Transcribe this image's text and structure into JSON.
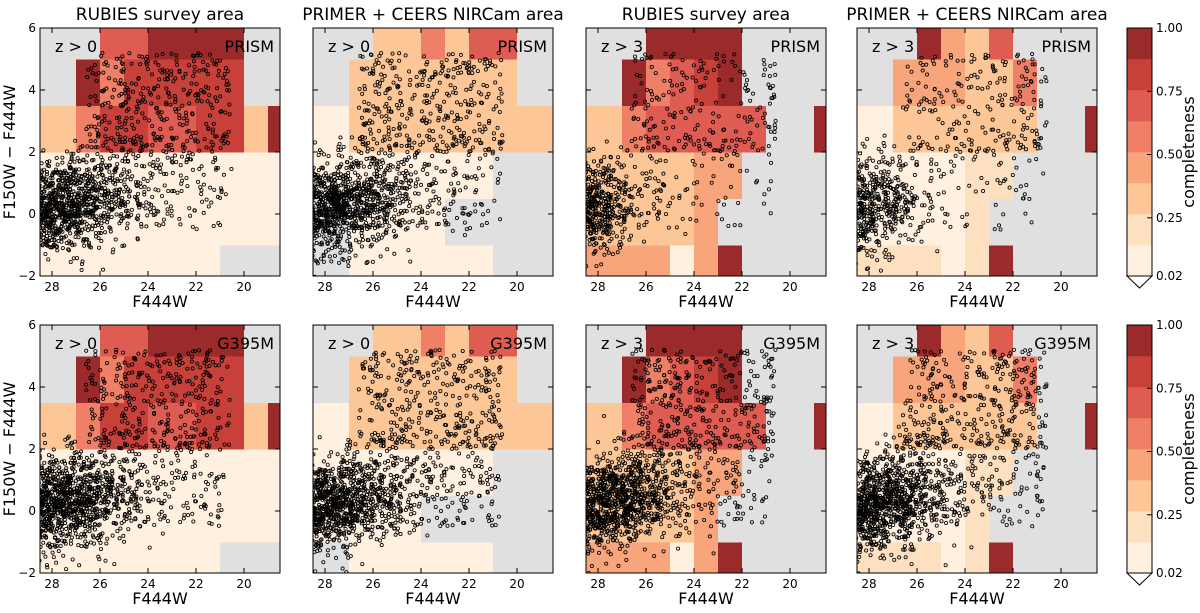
{
  "colorbar": {
    "label": "completeness",
    "ticks": [
      "0.02",
      "0.25",
      "0.50",
      "0.75",
      "1.00"
    ],
    "levels": [
      0.02,
      0.125,
      0.25,
      0.375,
      0.5,
      0.625,
      0.75,
      0.875,
      1.0
    ],
    "colors": [
      "#fff0e0",
      "#fde0c0",
      "#fdc697",
      "#f8a57c",
      "#ef8067",
      "#de5c52",
      "#c8403a",
      "#9b2a2a"
    ],
    "nodata_color": "#e0e0e0"
  },
  "chart_data": [
    {
      "type": "heatmap",
      "title": "RUBIES survey area",
      "redshift_label": "z > 0",
      "grating_label": "PRISM",
      "xlabel": "F444W",
      "ylabel": "F150W − F444W",
      "xlim": [
        28.5,
        18.5
      ],
      "ylim": [
        -2,
        6
      ],
      "xticks": [
        "28",
        "26",
        "24",
        "22",
        "20"
      ],
      "yticks": [
        "−2",
        "0",
        "2",
        "4",
        "6"
      ],
      "x_bin_edges": [
        28.5,
        27,
        26,
        25,
        24,
        23,
        22,
        21,
        20,
        19,
        18.5
      ],
      "y_bin_edges": [
        -2,
        -1,
        0.5,
        2,
        3.5,
        5,
        6
      ],
      "completeness": [
        [
          0.05,
          0.05,
          0.05,
          0.05,
          0.05,
          0.05,
          0.05,
          null,
          null,
          null
        ],
        [
          0.05,
          0.05,
          0.05,
          0.05,
          0.05,
          0.05,
          0.05,
          0.05,
          0.05,
          0.05
        ],
        [
          0.05,
          0.05,
          0.05,
          0.05,
          0.05,
          0.05,
          0.05,
          0.05,
          0.05,
          0.05
        ],
        [
          0.25,
          0.6,
          0.75,
          0.75,
          0.7,
          0.7,
          0.75,
          0.75,
          0.25,
          0.95
        ],
        [
          null,
          0.9,
          0.6,
          0.75,
          0.75,
          0.8,
          0.8,
          0.8,
          null,
          null
        ],
        [
          null,
          null,
          0.7,
          0.7,
          0.95,
          0.95,
          0.95,
          0.95,
          null,
          null
        ]
      ],
      "sample_density": "dense"
    },
    {
      "type": "heatmap",
      "title": "PRIMER + CEERS NIRCam area",
      "redshift_label": "z > 0",
      "grating_label": "PRISM",
      "xlabel": "F444W",
      "ylabel": "",
      "xlim": [
        28.5,
        18.5
      ],
      "ylim": [
        -2,
        6
      ],
      "xticks": [
        "28",
        "26",
        "24",
        "22",
        "20"
      ],
      "yticks": [
        "−2",
        "0",
        "2",
        "4",
        "6"
      ],
      "x_bin_edges": [
        28.5,
        27,
        26,
        25,
        24,
        23,
        22,
        21,
        20,
        19,
        18.5
      ],
      "y_bin_edges": [
        -2,
        -1,
        0.5,
        2,
        3.5,
        5,
        6
      ],
      "completeness": [
        [
          null,
          0.1,
          0.1,
          0.1,
          0.05,
          0.1,
          0.1,
          null,
          null,
          null
        ],
        [
          null,
          0.1,
          0.1,
          0.1,
          0.05,
          null,
          null,
          null,
          null,
          null
        ],
        [
          0.1,
          0.1,
          0.1,
          0.1,
          0.05,
          0.05,
          0.1,
          null,
          null,
          null
        ],
        [
          0.1,
          0.25,
          0.3,
          0.3,
          0.3,
          0.3,
          0.3,
          0.25,
          0.25,
          0.35
        ],
        [
          null,
          0.25,
          0.25,
          0.35,
          0.3,
          0.3,
          0.35,
          0.35,
          null,
          null
        ],
        [
          null,
          null,
          0.3,
          0.3,
          0.5,
          0.25,
          0.7,
          0.7,
          null,
          null
        ]
      ],
      "sample_density": "dense"
    },
    {
      "type": "heatmap",
      "title": "RUBIES survey area",
      "redshift_label": "z > 3",
      "grating_label": "PRISM",
      "xlabel": "F444W",
      "ylabel": "",
      "xlim": [
        28.5,
        18.5
      ],
      "ylim": [
        -2,
        6
      ],
      "xticks": [
        "28",
        "26",
        "24",
        "22",
        "20"
      ],
      "yticks": [
        "−2",
        "0",
        "2",
        "4",
        "6"
      ],
      "x_bin_edges": [
        28.5,
        27,
        26,
        25,
        24,
        23,
        22,
        21,
        20,
        19,
        18.5
      ],
      "y_bin_edges": [
        -2,
        -1,
        0.5,
        2,
        3.5,
        5,
        6
      ],
      "completeness": [
        [
          0.4,
          0.4,
          0.4,
          0.1,
          0.4,
          0.95,
          null,
          null,
          null,
          null
        ],
        [
          0.25,
          0.25,
          0.25,
          0.25,
          0.4,
          null,
          null,
          null,
          null,
          null
        ],
        [
          0.25,
          0.25,
          0.25,
          0.25,
          0.4,
          0.4,
          null,
          null,
          null,
          null
        ],
        [
          0.25,
          0.6,
          0.7,
          0.7,
          0.7,
          0.7,
          0.7,
          null,
          null,
          0.95
        ],
        [
          null,
          0.95,
          0.55,
          0.7,
          0.85,
          0.95,
          null,
          null,
          null,
          null
        ],
        [
          null,
          null,
          0.95,
          0.95,
          0.95,
          0.95,
          null,
          null,
          null,
          null
        ]
      ],
      "sample_density": "medium"
    },
    {
      "type": "heatmap",
      "title": "PRIMER + CEERS NIRCam area",
      "redshift_label": "z > 3",
      "grating_label": "PRISM",
      "xlabel": "F444W",
      "ylabel": "",
      "xlim": [
        28.5,
        18.5
      ],
      "ylim": [
        -2,
        6
      ],
      "xticks": [
        "28",
        "26",
        "24",
        "22",
        "20"
      ],
      "yticks": [
        "−2",
        "0",
        "2",
        "4",
        "6"
      ],
      "x_bin_edges": [
        28.5,
        27,
        26,
        25,
        24,
        23,
        22,
        21,
        20,
        19,
        18.5
      ],
      "y_bin_edges": [
        -2,
        -1,
        0.5,
        2,
        3.5,
        5,
        6
      ],
      "completeness": [
        [
          0.2,
          0.2,
          0.2,
          0.1,
          0.2,
          0.95,
          null,
          null,
          null,
          null
        ],
        [
          0.05,
          0.05,
          0.05,
          0.05,
          0.15,
          null,
          null,
          null,
          null,
          null
        ],
        [
          0.1,
          0.1,
          0.1,
          0.1,
          0.15,
          0.2,
          null,
          null,
          null,
          null
        ],
        [
          0.1,
          0.25,
          0.3,
          0.3,
          0.3,
          0.3,
          0.25,
          null,
          null,
          0.95
        ],
        [
          null,
          0.4,
          0.4,
          0.4,
          0.35,
          0.35,
          0.55,
          null,
          null,
          null
        ],
        [
          null,
          null,
          0.95,
          0.4,
          0.3,
          0.65,
          null,
          null,
          null,
          null
        ]
      ],
      "sample_density": "medium"
    },
    {
      "type": "heatmap",
      "title": "",
      "redshift_label": "z > 0",
      "grating_label": "G395M",
      "xlabel": "F444W",
      "ylabel": "F150W − F444W",
      "xlim": [
        28.5,
        18.5
      ],
      "ylim": [
        -2,
        6
      ],
      "xticks": [
        "28",
        "26",
        "24",
        "22",
        "20"
      ],
      "yticks": [
        "−2",
        "0",
        "2",
        "4",
        "6"
      ],
      "x_bin_edges": [
        28.5,
        27,
        26,
        25,
        24,
        23,
        22,
        21,
        20,
        19,
        18.5
      ],
      "y_bin_edges": [
        -2,
        -1,
        0.5,
        2,
        3.5,
        5,
        6
      ],
      "completeness": [
        [
          0.05,
          0.05,
          0.05,
          0.05,
          0.05,
          0.05,
          0.05,
          null,
          null,
          null
        ],
        [
          0.05,
          0.05,
          0.05,
          0.05,
          0.05,
          0.05,
          0.05,
          0.05,
          0.05,
          0.05
        ],
        [
          0.05,
          0.05,
          0.05,
          0.05,
          0.05,
          0.05,
          0.05,
          0.05,
          0.05,
          0.05
        ],
        [
          0.25,
          0.6,
          0.75,
          0.75,
          0.7,
          0.7,
          0.75,
          0.75,
          0.25,
          0.95
        ],
        [
          null,
          0.9,
          0.6,
          0.75,
          0.75,
          0.8,
          0.8,
          0.8,
          null,
          null
        ],
        [
          null,
          null,
          0.7,
          0.7,
          0.95,
          0.95,
          0.95,
          0.95,
          null,
          null
        ]
      ],
      "sample_density": "dense"
    },
    {
      "type": "heatmap",
      "title": "",
      "redshift_label": "z > 0",
      "grating_label": "G395M",
      "xlabel": "F444W",
      "ylabel": "",
      "xlim": [
        28.5,
        18.5
      ],
      "ylim": [
        -2,
        6
      ],
      "xticks": [
        "28",
        "26",
        "24",
        "22",
        "20"
      ],
      "yticks": [
        "−2",
        "0",
        "2",
        "4",
        "6"
      ],
      "x_bin_edges": [
        28.5,
        27,
        26,
        25,
        24,
        23,
        22,
        21,
        20,
        19,
        18.5
      ],
      "y_bin_edges": [
        -2,
        -1,
        0.5,
        2,
        3.5,
        5,
        6
      ],
      "completeness": [
        [
          null,
          0.1,
          0.1,
          0.1,
          0.1,
          0.1,
          0.1,
          null,
          null,
          null
        ],
        [
          0.1,
          0.1,
          0.1,
          0.1,
          null,
          null,
          null,
          null,
          null,
          null
        ],
        [
          0.1,
          0.1,
          0.1,
          0.1,
          0.1,
          0.1,
          0.1,
          null,
          null,
          null
        ],
        [
          0.1,
          0.25,
          0.3,
          0.3,
          0.3,
          0.3,
          0.3,
          0.3,
          0.3,
          0.3
        ],
        [
          null,
          0.25,
          0.25,
          0.35,
          0.3,
          0.3,
          0.35,
          0.35,
          null,
          null
        ],
        [
          null,
          null,
          0.3,
          0.3,
          0.5,
          0.25,
          0.7,
          0.7,
          null,
          null
        ]
      ],
      "sample_density": "dense"
    },
    {
      "type": "heatmap",
      "title": "",
      "redshift_label": "z > 3",
      "grating_label": "G395M",
      "xlabel": "F444W",
      "ylabel": "",
      "xlim": [
        28.5,
        18.5
      ],
      "ylim": [
        -2,
        6
      ],
      "xticks": [
        "28",
        "26",
        "24",
        "22",
        "20"
      ],
      "yticks": [
        "−2",
        "0",
        "2",
        "4",
        "6"
      ],
      "x_bin_edges": [
        28.5,
        27,
        26,
        25,
        24,
        23,
        22,
        21,
        20,
        19,
        18.5
      ],
      "y_bin_edges": [
        -2,
        -1,
        0.5,
        2,
        3.5,
        5,
        6
      ],
      "completeness": [
        [
          0.4,
          0.4,
          0.4,
          0.1,
          0.4,
          0.95,
          null,
          null,
          null,
          null
        ],
        [
          0.25,
          0.25,
          0.25,
          0.25,
          0.4,
          null,
          null,
          null,
          null,
          null
        ],
        [
          0.25,
          0.25,
          0.25,
          0.25,
          0.4,
          0.4,
          null,
          null,
          null,
          null
        ],
        [
          0.25,
          0.6,
          0.7,
          0.7,
          0.7,
          0.7,
          0.7,
          null,
          null,
          0.95
        ],
        [
          null,
          0.95,
          0.55,
          0.7,
          0.85,
          0.95,
          null,
          null,
          null,
          null
        ],
        [
          null,
          null,
          0.95,
          0.95,
          0.95,
          0.95,
          null,
          null,
          null,
          null
        ]
      ],
      "sample_density": "dense"
    },
    {
      "type": "heatmap",
      "title": "",
      "redshift_label": "z > 3",
      "grating_label": "G395M",
      "xlabel": "F444W",
      "ylabel": "",
      "xlim": [
        28.5,
        18.5
      ],
      "ylim": [
        -2,
        6
      ],
      "xticks": [
        "28",
        "26",
        "24",
        "22",
        "20"
      ],
      "yticks": [
        "−2",
        "0",
        "2",
        "4",
        "6"
      ],
      "x_bin_edges": [
        28.5,
        27,
        26,
        25,
        24,
        23,
        22,
        21,
        20,
        19,
        18.5
      ],
      "y_bin_edges": [
        -2,
        -1,
        0.5,
        2,
        3.5,
        5,
        6
      ],
      "completeness": [
        [
          0.2,
          0.2,
          0.2,
          0.1,
          0.2,
          0.95,
          null,
          null,
          null,
          null
        ],
        [
          0.05,
          0.05,
          0.05,
          0.05,
          0.15,
          null,
          null,
          null,
          null,
          null
        ],
        [
          0.1,
          0.1,
          0.1,
          0.1,
          0.15,
          0.2,
          null,
          null,
          null,
          null
        ],
        [
          0.1,
          0.25,
          0.3,
          0.3,
          0.3,
          0.3,
          0.25,
          null,
          null,
          0.95
        ],
        [
          null,
          0.4,
          0.4,
          0.4,
          0.35,
          0.35,
          0.55,
          null,
          null,
          null
        ],
        [
          null,
          null,
          0.95,
          0.4,
          0.3,
          0.65,
          null,
          null,
          null,
          null
        ]
      ],
      "sample_density": "dense"
    }
  ]
}
